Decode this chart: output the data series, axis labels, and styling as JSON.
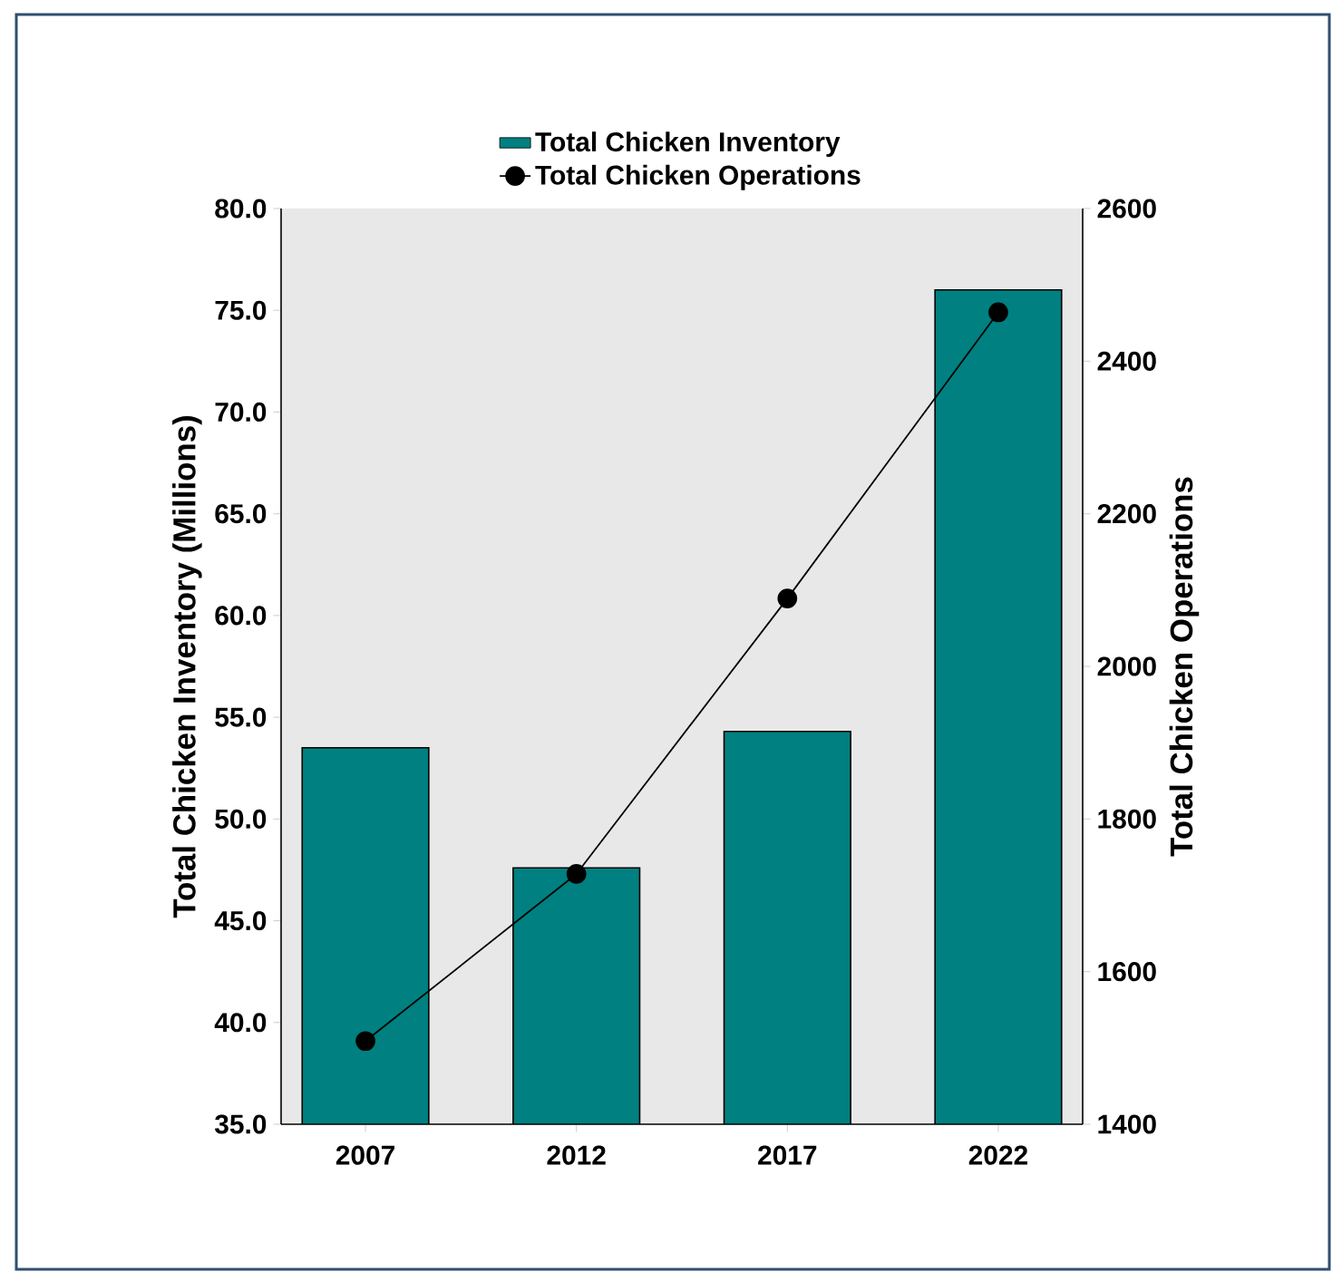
{
  "chart_data": {
    "type": "bar",
    "categories": [
      "2007",
      "2012",
      "2017",
      "2022"
    ],
    "ylabel": "Total Chicken Inventory (Millions)",
    "y2label": "Total Chicken Operations",
    "ylim": [
      35,
      80
    ],
    "yticks": [
      {
        "value": 35,
        "label": "35.0"
      },
      {
        "value": 40,
        "label": "40.0"
      },
      {
        "value": 45,
        "label": "45.0"
      },
      {
        "value": 50,
        "label": "50.0"
      },
      {
        "value": 55,
        "label": "55.0"
      },
      {
        "value": 60,
        "label": "60.0"
      },
      {
        "value": 65,
        "label": "65.0"
      },
      {
        "value": 70,
        "label": "70.0"
      },
      {
        "value": 75,
        "label": "75.0"
      },
      {
        "value": 80,
        "label": "80.0"
      }
    ],
    "y2lim": [
      1400,
      2600
    ],
    "y2ticks": [
      1400,
      1600,
      1800,
      2000,
      2200,
      2400,
      2600
    ],
    "legend": "top",
    "grid": false,
    "series": [
      {
        "name": "Total Chicken Inventory",
        "color": "#008080",
        "values": [
          53.5,
          47.6,
          54.3,
          76.0
        ]
      },
      {
        "name": "Total Chicken Operations",
        "type": "line",
        "axis": "y2",
        "color": "#000000",
        "marker": "circle",
        "line_style": "solid",
        "values": [
          1509,
          1728,
          2089,
          2464
        ]
      }
    ]
  }
}
